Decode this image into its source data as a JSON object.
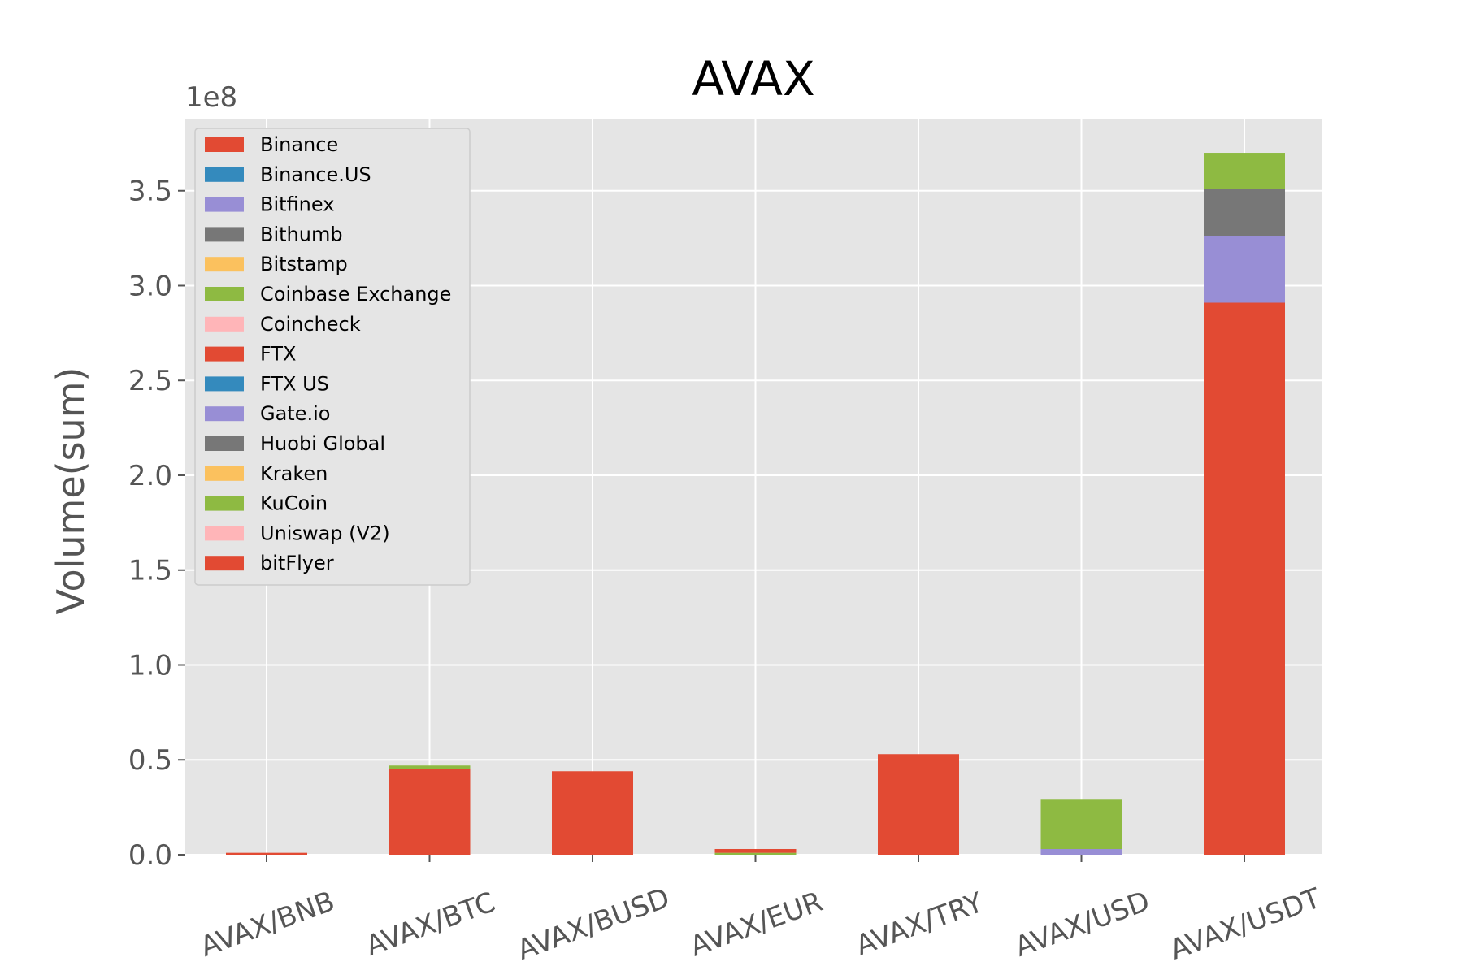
{
  "chart_data": {
    "type": "bar",
    "stacked": true,
    "title": "AVAX",
    "xlabel": "",
    "ylabel": "Volume(sum)",
    "offset_label": "1e8",
    "categories": [
      "AVAX/BNB",
      "AVAX/BTC",
      "AVAX/BUSD",
      "AVAX/EUR",
      "AVAX/TRY",
      "AVAX/USD",
      "AVAX/USDT"
    ],
    "ylim": [
      0,
      3.88
    ],
    "yticks": [
      "0.0",
      "0.5",
      "1.0",
      "1.5",
      "2.0",
      "2.5",
      "3.0",
      "3.5"
    ],
    "ytick_values": [
      0,
      0.5,
      1.0,
      1.5,
      2.0,
      2.5,
      3.0,
      3.5
    ],
    "grid": true,
    "legend_position": "top-left",
    "series": [
      {
        "name": "Binance",
        "color": "#E24A33",
        "values": [
          0.01,
          0.45,
          0.44,
          0.0,
          0.53,
          0.0,
          2.91
        ]
      },
      {
        "name": "Binance.US",
        "color": "#348ABD",
        "values": [
          0,
          0,
          0,
          0,
          0,
          0,
          0
        ]
      },
      {
        "name": "Bitfinex",
        "color": "#988ED5",
        "values": [
          0,
          0,
          0,
          0,
          0,
          0.03,
          0.35
        ]
      },
      {
        "name": "Bithumb",
        "color": "#777777",
        "values": [
          0,
          0,
          0,
          0,
          0,
          0,
          0.25
        ]
      },
      {
        "name": "Bitstamp",
        "color": "#FBC15E",
        "values": [
          0,
          0,
          0,
          0,
          0,
          0,
          0
        ]
      },
      {
        "name": "Coinbase Exchange",
        "color": "#8EBA42",
        "values": [
          0,
          0,
          0,
          0.01,
          0,
          0.26,
          0
        ]
      },
      {
        "name": "Coincheck",
        "color": "#FFB5B8",
        "values": [
          0,
          0,
          0,
          0,
          0,
          0,
          0
        ]
      },
      {
        "name": "FTX",
        "color": "#E24A33",
        "values": [
          0,
          0,
          0,
          0.02,
          0,
          0,
          0
        ]
      },
      {
        "name": "FTX US",
        "color": "#348ABD",
        "values": [
          0,
          0,
          0,
          0,
          0,
          0,
          0
        ]
      },
      {
        "name": "Gate.io",
        "color": "#988ED5",
        "values": [
          0,
          0,
          0,
          0,
          0,
          0,
          0
        ]
      },
      {
        "name": "Huobi Global",
        "color": "#777777",
        "values": [
          0,
          0,
          0,
          0,
          0,
          0,
          0
        ]
      },
      {
        "name": "Kraken",
        "color": "#FBC15E",
        "values": [
          0,
          0,
          0,
          0,
          0,
          0,
          0
        ]
      },
      {
        "name": "KuCoin",
        "color": "#8EBA42",
        "values": [
          0,
          0.02,
          0,
          0,
          0,
          0,
          0.19
        ]
      },
      {
        "name": "Uniswap (V2)",
        "color": "#FFB5B8",
        "values": [
          0,
          0,
          0,
          0,
          0,
          0,
          0
        ]
      },
      {
        "name": "bitFlyer",
        "color": "#E24A33",
        "values": [
          0,
          0,
          0,
          0,
          0,
          0,
          0
        ]
      }
    ]
  }
}
